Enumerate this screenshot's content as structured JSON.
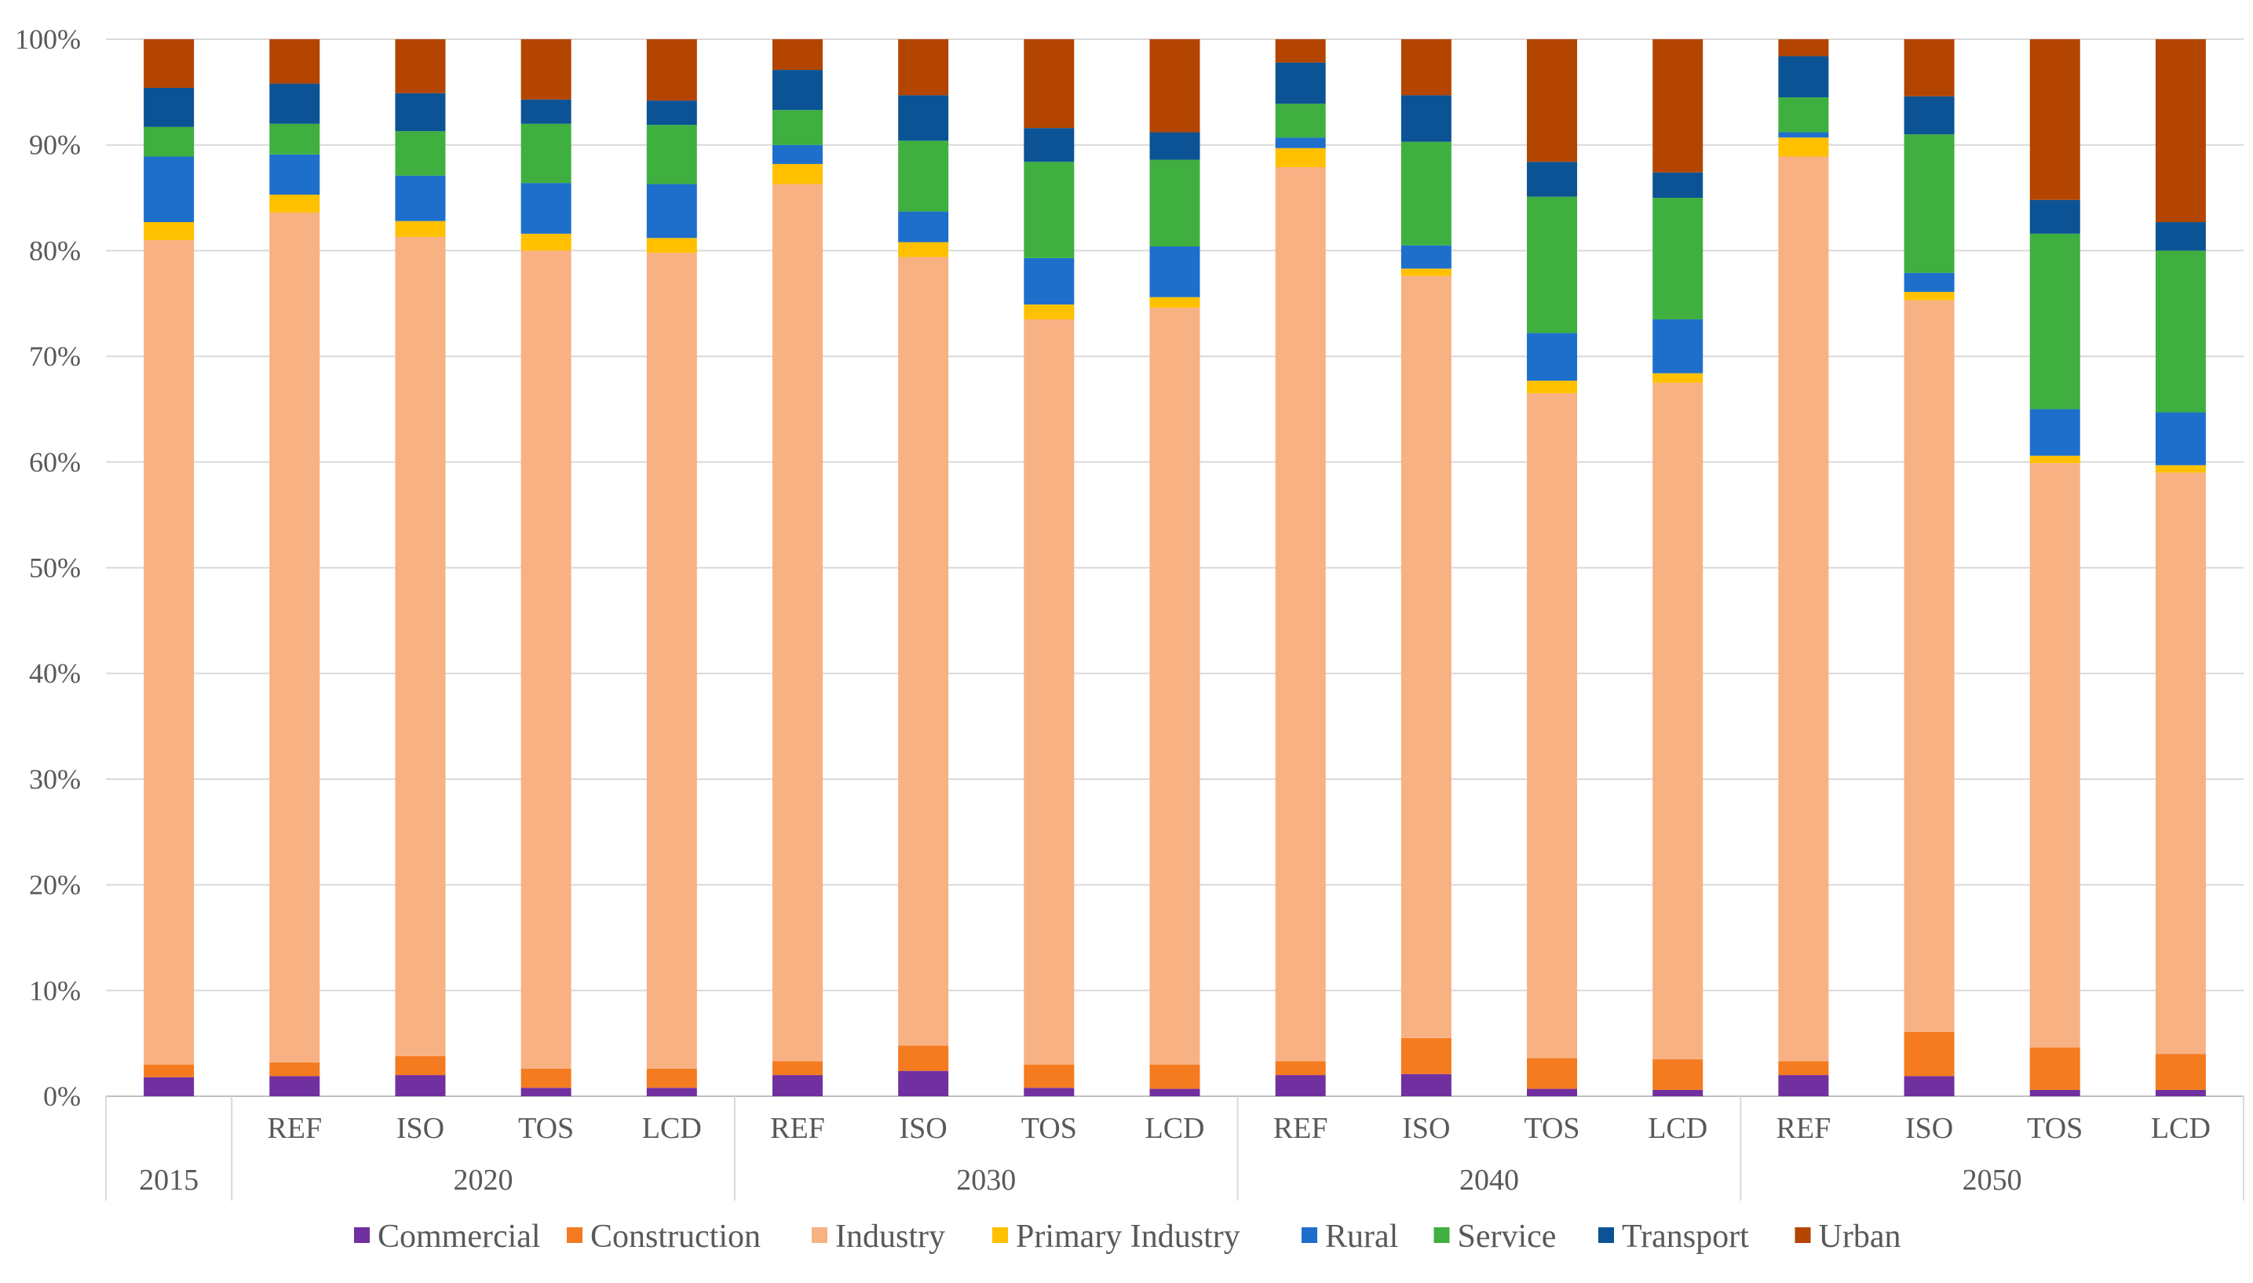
{
  "chart_data": {
    "type": "bar",
    "stacked": true,
    "percent": true,
    "ylim": [
      0,
      100
    ],
    "yticks": [
      "0%",
      "10%",
      "20%",
      "30%",
      "40%",
      "50%",
      "60%",
      "70%",
      "80%",
      "90%",
      "100%"
    ],
    "grid": true,
    "legend_position": "bottom",
    "categories": [
      "",
      "REF",
      "ISO",
      "TOS",
      "LCD",
      "REF",
      "ISO",
      "TOS",
      "LCD",
      "REF",
      "ISO",
      "TOS",
      "LCD",
      "REF",
      "ISO",
      "TOS",
      "LCD"
    ],
    "groups": [
      {
        "label": "2015",
        "count": 1
      },
      {
        "label": "2020",
        "count": 4
      },
      {
        "label": "2030",
        "count": 4
      },
      {
        "label": "2040",
        "count": 4
      },
      {
        "label": "2050",
        "count": 4
      }
    ],
    "series": [
      {
        "name": "Commercial",
        "color": "#7030A0",
        "values": [
          1.8,
          1.9,
          2.0,
          0.8,
          0.8,
          2.0,
          2.4,
          0.8,
          0.7,
          2.0,
          2.1,
          0.7,
          0.6,
          2.0,
          1.9,
          0.6,
          0.6
        ]
      },
      {
        "name": "Construction",
        "color": "#F47B20",
        "values": [
          1.2,
          1.3,
          1.8,
          1.8,
          1.8,
          1.3,
          2.4,
          2.2,
          2.3,
          1.3,
          3.4,
          2.9,
          2.9,
          1.3,
          4.2,
          4.0,
          3.4
        ]
      },
      {
        "name": "Industry",
        "color": "#F8B183",
        "values": [
          78.0,
          80.4,
          77.5,
          77.4,
          77.2,
          83.0,
          74.6,
          70.5,
          71.6,
          84.6,
          72.1,
          62.9,
          64.0,
          85.6,
          69.2,
          55.3,
          55.0
        ]
      },
      {
        "name": "Primary Industry",
        "color": "#FFC000",
        "values": [
          1.7,
          1.7,
          1.5,
          1.6,
          1.4,
          1.9,
          1.4,
          1.4,
          1.0,
          1.8,
          0.7,
          1.2,
          0.9,
          1.8,
          0.8,
          0.7,
          0.7
        ]
      },
      {
        "name": "Rural",
        "color": "#1E6FCC",
        "values": [
          6.2,
          3.8,
          4.3,
          4.8,
          5.1,
          1.8,
          2.9,
          4.4,
          4.8,
          1.0,
          2.2,
          4.5,
          5.1,
          0.5,
          1.8,
          4.4,
          5.0
        ]
      },
      {
        "name": "Service",
        "color": "#3FAF3F",
        "values": [
          2.8,
          2.9,
          4.2,
          5.6,
          5.6,
          3.3,
          6.7,
          9.1,
          8.2,
          3.2,
          9.8,
          12.9,
          11.5,
          3.3,
          13.1,
          16.6,
          15.3
        ]
      },
      {
        "name": "Transport",
        "color": "#0B5394",
        "values": [
          3.7,
          3.8,
          3.6,
          2.3,
          2.3,
          3.8,
          4.3,
          3.2,
          2.6,
          3.9,
          4.4,
          3.3,
          2.4,
          3.9,
          3.6,
          3.2,
          2.7
        ]
      },
      {
        "name": "Urban",
        "color": "#B34500",
        "values": [
          4.6,
          4.2,
          5.1,
          5.7,
          5.8,
          2.9,
          5.3,
          8.4,
          8.8,
          2.2,
          5.3,
          11.6,
          12.6,
          1.6,
          5.4,
          15.2,
          17.3
        ]
      }
    ]
  }
}
